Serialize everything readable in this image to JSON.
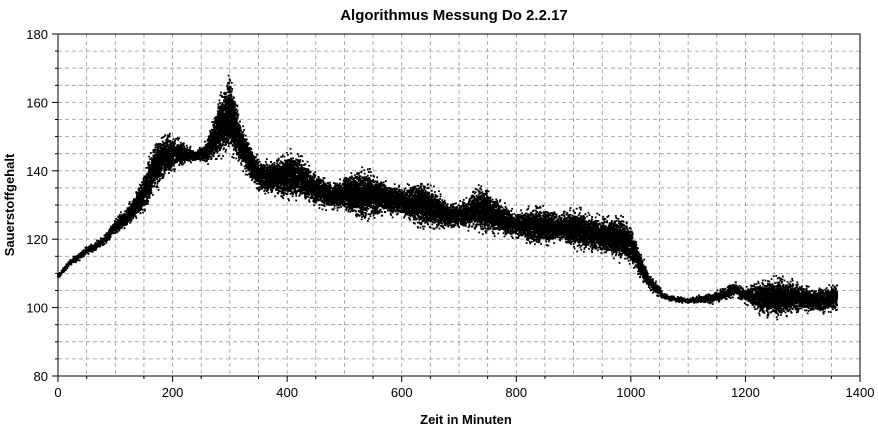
{
  "chart_data": {
    "type": "scatter",
    "title": "Algorithmus Messung Do 2.2.17",
    "xlabel": "Zeit in Minuten",
    "ylabel": "Sauerstoffgehalt",
    "xlim": [
      0,
      1400
    ],
    "ylim": [
      80,
      180
    ],
    "x_ticks": [
      "0",
      "200",
      "400",
      "600",
      "800",
      "1000",
      "1200",
      "1400"
    ],
    "y_ticks": [
      "80",
      "100",
      "120",
      "140",
      "160",
      "180"
    ],
    "grid": "dashed",
    "legend": "none",
    "marker_color": "#000000",
    "series": [
      {
        "x": [
          0,
          20,
          50,
          80,
          100,
          130,
          150,
          170,
          190,
          210,
          240,
          260,
          280,
          300,
          320,
          350,
          380,
          400,
          420,
          450,
          480,
          500,
          530,
          560,
          600,
          640,
          680,
          700,
          740,
          780,
          800,
          840,
          880,
          900,
          950,
          980,
          1000,
          1030,
          1060,
          1100,
          1150,
          1180,
          1200,
          1230,
          1260,
          1290,
          1320,
          1350,
          1360
        ],
        "y_min": [
          108,
          112,
          115,
          118,
          121,
          124,
          127,
          133,
          138,
          140,
          143,
          141,
          142,
          144,
          140,
          133,
          132,
          130,
          131,
          129,
          128,
          127,
          124,
          126,
          126,
          122,
          122,
          123,
          121,
          120,
          120,
          117,
          119,
          116,
          115,
          113,
          112,
          105,
          102,
          101,
          101,
          103,
          101,
          97,
          96,
          98,
          98,
          98,
          99
        ],
        "y_max": [
          110,
          114,
          118,
          121,
          126,
          132,
          140,
          150,
          152,
          150,
          146,
          150,
          162,
          170,
          155,
          144,
          144,
          147,
          146,
          140,
          137,
          140,
          142,
          139,
          136,
          138,
          132,
          131,
          137,
          131,
          128,
          131,
          128,
          130,
          127,
          128,
          125,
          111,
          104,
          103,
          105,
          108,
          106,
          109,
          110,
          108,
          106,
          107,
          108
        ]
      }
    ]
  }
}
